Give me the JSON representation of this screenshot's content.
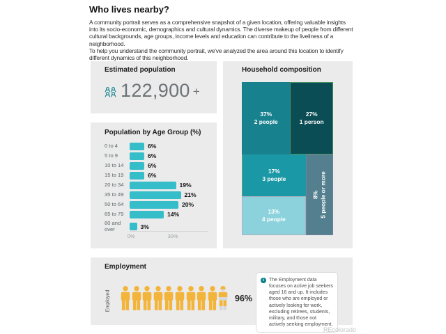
{
  "page": {
    "title": "Who lives nearby?",
    "intro_1": "A community portrait serves as a comprehensive snapshot of a given location, offering valuable insights into its socio-economic, demographics and cultural dynamics. The diverse makeup of people from different cultural backgrounds, age groups, income levels and education can contribute to the liveliness of a neighborhood.",
    "intro_2": "To help you understand the community portrait, we've analyzed the area around this location to identify different dynamics of this neighborhood.",
    "watermark": "REcolorado"
  },
  "population_card": {
    "title": "Estimated population",
    "icon": "people-group-icon",
    "value": "122,900",
    "suffix": "+"
  },
  "colors": {
    "card_background": "#ebebeb",
    "accent_teal": "#0c7f8c",
    "bar_teal": "#35bdc9",
    "person_yellow": "#f3b43c",
    "person_empty_gray": "#d8d8d8",
    "big_number_gray": "#6d7377"
  },
  "chart_data": [
    {
      "type": "bar",
      "title": "Population by Age Group (%)",
      "orientation": "horizontal",
      "categories": [
        "0 to 4",
        "5 to 9",
        "10 to 14",
        "15 to 19",
        "20 to 34",
        "35 to 49",
        "50 to 64",
        "65 to 79",
        "80 and over"
      ],
      "values": [
        6,
        6,
        6,
        6,
        19,
        21,
        20,
        14,
        3
      ],
      "value_labels": [
        "6%",
        "6%",
        "6%",
        "6%",
        "19%",
        "21%",
        "20%",
        "14%",
        "3%"
      ],
      "unit": "%",
      "x_ticks": [
        "0%",
        "30%"
      ],
      "xlim": [
        0,
        32
      ],
      "bar_color": "#35bdc9",
      "grid": false,
      "legend": "none"
    },
    {
      "type": "treemap",
      "title": "Household composition",
      "cells": [
        {
          "value_label": "37%",
          "label": "2 people",
          "value": 37,
          "color": "#17818e",
          "text_color": "#ffffff"
        },
        {
          "value_label": "27%",
          "label": "1 person",
          "value": 27,
          "color": "#0a4d55",
          "text_color": "#ffffff"
        },
        {
          "value_label": "17%",
          "label": "3 people",
          "value": 17,
          "color": "#1b98a5",
          "text_color": "#ffffff"
        },
        {
          "value_label": "13%",
          "label": "4 people",
          "value": 13,
          "color": "#8bd2dc",
          "text_color": "#ffffff"
        },
        {
          "value_label": "8%",
          "label": "5 people or more",
          "value": 8,
          "color": "#547f8e",
          "text_color": "#ffffff",
          "rotated": true
        }
      ]
    },
    {
      "type": "pictogram",
      "title": "Employment",
      "category": "Employed",
      "value": 96,
      "value_label": "96%",
      "icon_count": 10,
      "icon_filled_fraction_last": 0.6,
      "icon_color": "#f3b43c",
      "icon_empty_color": "#d8d8d8",
      "note": "The Employment data focuses on active job seekers aged 16 and up. It includes those who are employed or actively looking for work, excluding retirees, students, military, and those not actively seeking employment."
    }
  ]
}
